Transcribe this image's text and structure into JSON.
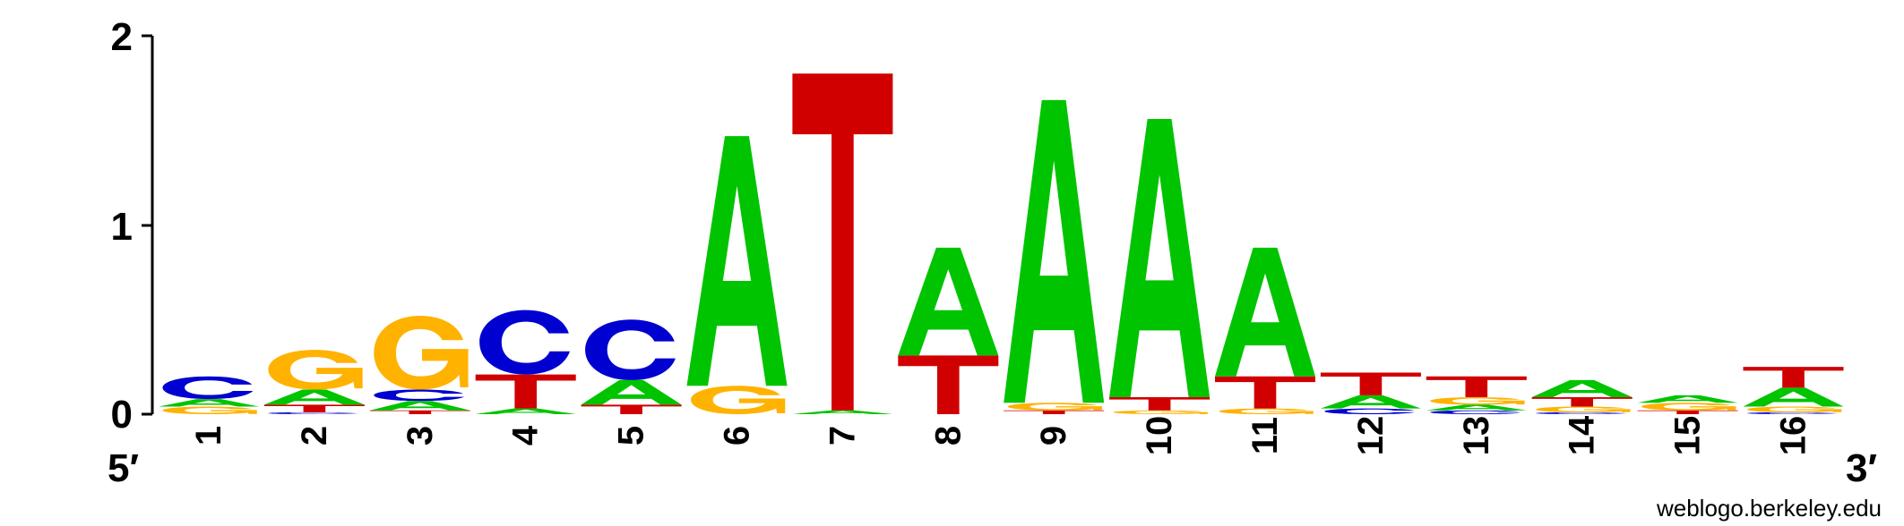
{
  "chart_data": {
    "type": "sequence-logo",
    "y_ticks": [
      "0",
      "1",
      "2"
    ],
    "ylim": [
      0,
      2
    ],
    "left_end_label": "5′",
    "right_end_label": "3′",
    "footer": "weblogo.berkeley.edu",
    "colors": {
      "A": "#00c400",
      "C": "#0000d0",
      "G": "#ffb200",
      "T": "#d00000"
    },
    "positions": [
      {
        "label": "1",
        "stack": [
          {
            "letter": "G",
            "height": 0.04
          },
          {
            "letter": "A",
            "height": 0.04
          },
          {
            "letter": "C",
            "height": 0.12
          }
        ]
      },
      {
        "label": "2",
        "stack": [
          {
            "letter": "C",
            "height": 0.01
          },
          {
            "letter": "T",
            "height": 0.04
          },
          {
            "letter": "A",
            "height": 0.08
          },
          {
            "letter": "G",
            "height": 0.21
          }
        ]
      },
      {
        "label": "3",
        "stack": [
          {
            "letter": "T",
            "height": 0.02
          },
          {
            "letter": "A",
            "height": 0.05
          },
          {
            "letter": "C",
            "height": 0.06
          },
          {
            "letter": "G",
            "height": 0.39
          }
        ]
      },
      {
        "label": "4",
        "stack": [
          {
            "letter": "A",
            "height": 0.03
          },
          {
            "letter": "T",
            "height": 0.18
          },
          {
            "letter": "C",
            "height": 0.34
          }
        ]
      },
      {
        "label": "5",
        "stack": [
          {
            "letter": "T",
            "height": 0.05
          },
          {
            "letter": "A",
            "height": 0.13
          },
          {
            "letter": "C",
            "height": 0.32
          }
        ]
      },
      {
        "label": "6",
        "stack": [
          {
            "letter": "G",
            "height": 0.15
          },
          {
            "letter": "A",
            "height": 1.32
          }
        ]
      },
      {
        "label": "7",
        "stack": [
          {
            "letter": "A",
            "height": 0.02
          },
          {
            "letter": "T",
            "height": 1.78
          }
        ]
      },
      {
        "label": "8",
        "stack": [
          {
            "letter": "T",
            "height": 0.31
          },
          {
            "letter": "A",
            "height": 0.57
          }
        ]
      },
      {
        "label": "9",
        "stack": [
          {
            "letter": "T",
            "height": 0.02
          },
          {
            "letter": "G",
            "height": 0.04
          },
          {
            "letter": "A",
            "height": 1.6
          }
        ]
      },
      {
        "label": "10",
        "stack": [
          {
            "letter": "G",
            "height": 0.02
          },
          {
            "letter": "T",
            "height": 0.07
          },
          {
            "letter": "A",
            "height": 1.47
          }
        ]
      },
      {
        "label": "11",
        "stack": [
          {
            "letter": "G",
            "height": 0.03
          },
          {
            "letter": "T",
            "height": 0.17
          },
          {
            "letter": "A",
            "height": 0.68
          }
        ]
      },
      {
        "label": "12",
        "stack": [
          {
            "letter": "C",
            "height": 0.03
          },
          {
            "letter": "A",
            "height": 0.07
          },
          {
            "letter": "T",
            "height": 0.12
          }
        ]
      },
      {
        "label": "13",
        "stack": [
          {
            "letter": "C",
            "height": 0.02
          },
          {
            "letter": "A",
            "height": 0.03
          },
          {
            "letter": "G",
            "height": 0.04
          },
          {
            "letter": "T",
            "height": 0.11
          }
        ]
      },
      {
        "label": "14",
        "stack": [
          {
            "letter": "C",
            "height": 0.01
          },
          {
            "letter": "G",
            "height": 0.03
          },
          {
            "letter": "T",
            "height": 0.05
          },
          {
            "letter": "A",
            "height": 0.09
          }
        ]
      },
      {
        "label": "15",
        "stack": [
          {
            "letter": "T",
            "height": 0.02
          },
          {
            "letter": "G",
            "height": 0.04
          },
          {
            "letter": "A",
            "height": 0.04
          }
        ]
      },
      {
        "label": "16",
        "stack": [
          {
            "letter": "C",
            "height": 0.01
          },
          {
            "letter": "G",
            "height": 0.03
          },
          {
            "letter": "A",
            "height": 0.1
          },
          {
            "letter": "T",
            "height": 0.11
          }
        ]
      }
    ]
  }
}
